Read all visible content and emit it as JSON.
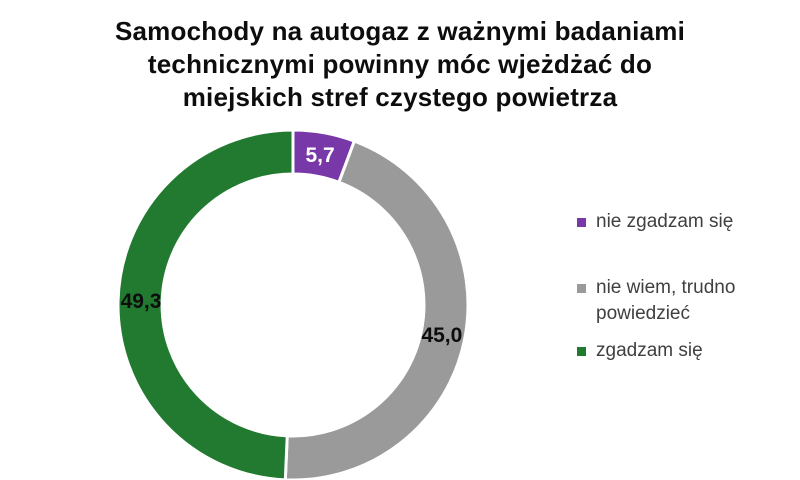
{
  "title": {
    "lines": [
      "Samochody na autogaz z ważnymi badaniami",
      "technicznymi powinny móc wjeżdżać do",
      "miejskich stref czystego powietrza"
    ]
  },
  "chart_data": {
    "type": "pie",
    "subtype": "donut",
    "title": "Samochody na autogaz z ważnymi badaniami technicznymi powinny móc wjeżdżać do miejskich stref czystego powietrza",
    "unit": "%",
    "start_angle_deg": 0,
    "direction": "clockwise",
    "legend_position": "right",
    "background": "#FFFFFF",
    "legend_text_color": "#404040",
    "slices": [
      {
        "label": "nie zgadzam się",
        "value": 5.7,
        "display": "5,7",
        "color": "#7838A8",
        "label_color": "#FFFFFF"
      },
      {
        "label": "nie wiem, trudno powiedzieć",
        "value": 45.0,
        "display": "45,0",
        "color": "#9A9A9A",
        "label_color": "#0D0D0D"
      },
      {
        "label": "zgadzam się",
        "value": 49.3,
        "display": "49,3",
        "color": "#217A2F",
        "label_color": "#0D0D0D"
      }
    ]
  }
}
